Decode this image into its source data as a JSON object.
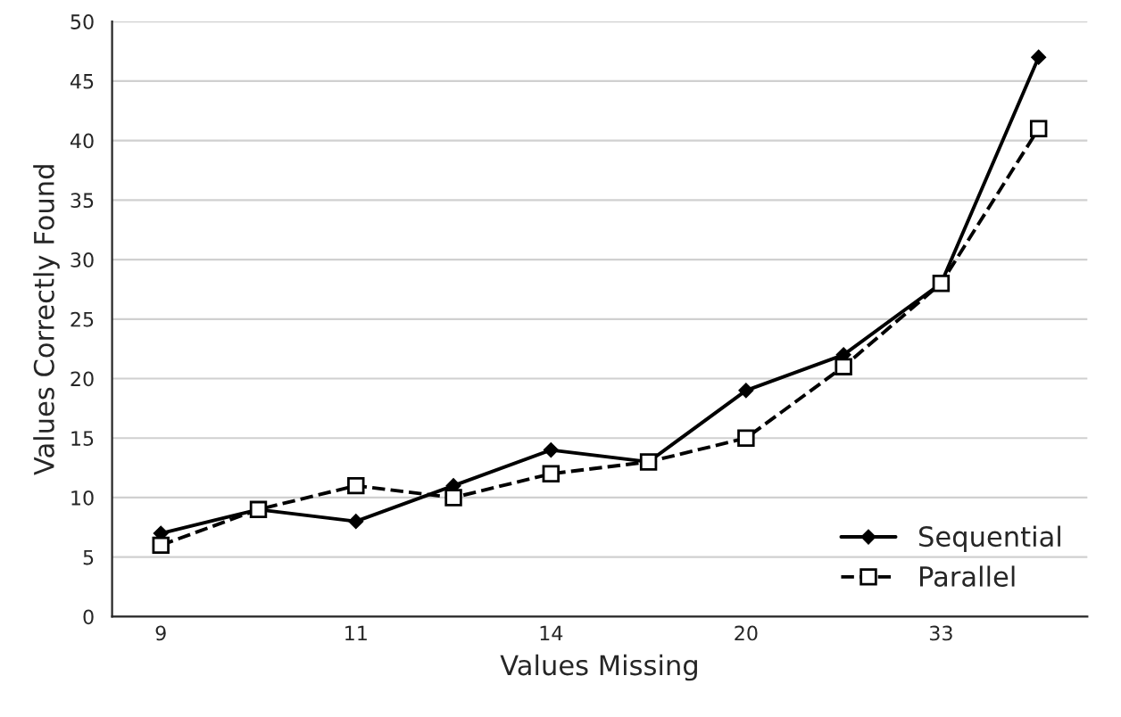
{
  "chart_data": {
    "type": "line",
    "xlabel": "Values Missing",
    "ylabel": "Values Correctly Found",
    "categories": [
      "9",
      null,
      "11",
      null,
      "14",
      null,
      "20",
      null,
      "33",
      null
    ],
    "series": [
      {
        "name": "Sequential",
        "color": "#000000",
        "marker": "diamond",
        "line_style": "solid",
        "values": [
          7,
          9,
          8,
          11,
          14,
          13,
          19,
          22,
          28,
          47
        ]
      },
      {
        "name": "Parallel",
        "color": "#000000",
        "marker": "square",
        "line_style": "dashed",
        "values": [
          6,
          9,
          11,
          10,
          12,
          13,
          15,
          21,
          28,
          41
        ]
      }
    ],
    "ylim": [
      0,
      50
    ],
    "yticks": [
      0,
      5,
      10,
      15,
      20,
      25,
      30,
      35,
      40,
      45,
      50
    ],
    "grid": "y",
    "legend": "bottom right"
  }
}
